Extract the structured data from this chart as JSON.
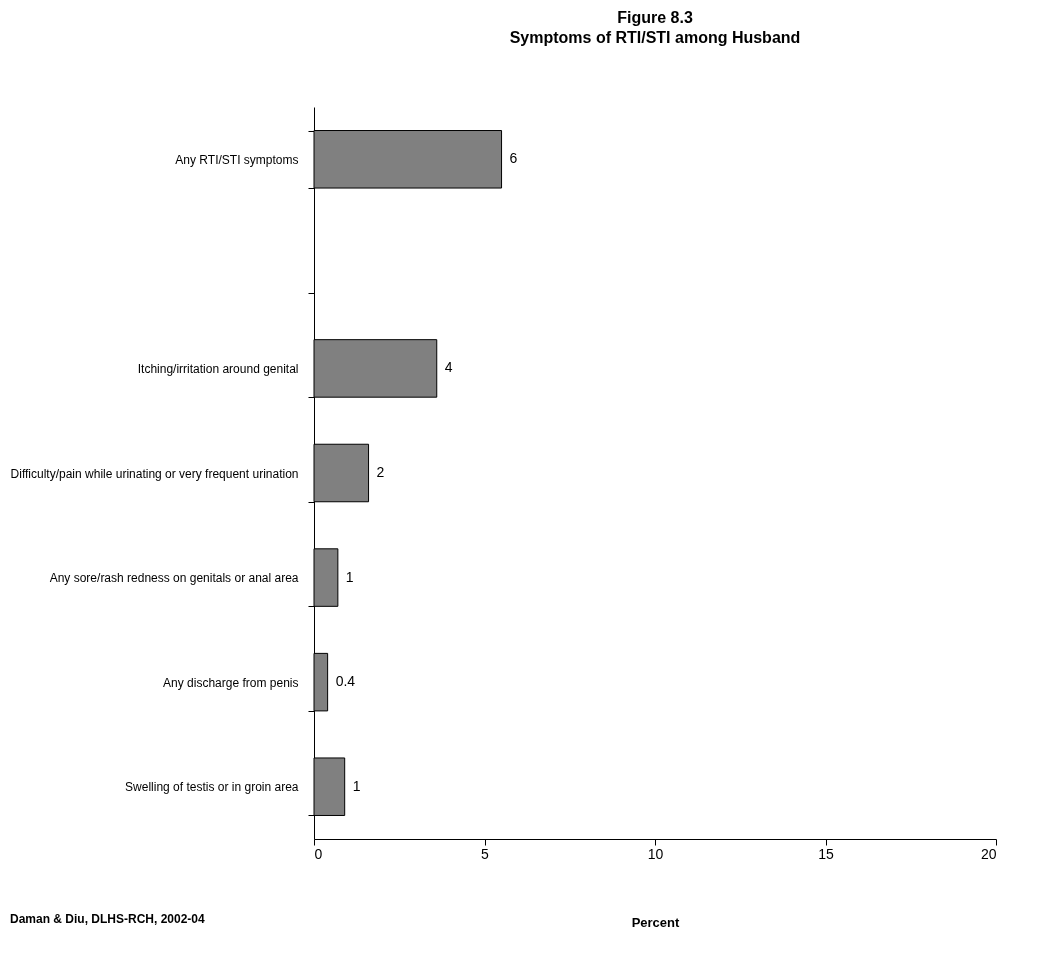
{
  "chart_data": {
    "type": "bar",
    "orientation": "horizontal",
    "title": "Figure 8.3",
    "subtitle": "Symptoms of RTI/STI among Husband",
    "xlabel": "Percent",
    "categories": [
      "Any RTI/STI symptoms",
      null,
      "Itching/irritation around genital",
      "Difficulty/pain while urinating or very frequent urination",
      "Any sore/rash redness on genitals or anal area",
      "Any discharge from penis",
      "Swelling of testis or in groin area"
    ],
    "values": [
      5.5,
      null,
      3.6,
      1.6,
      0.7,
      0.4,
      0.9
    ],
    "value_labels": [
      "6",
      null,
      "4",
      "2",
      "1",
      "0.4",
      "1"
    ],
    "color": "#808080",
    "xlim": [
      0,
      20
    ],
    "xticks": [
      0,
      5,
      10,
      15,
      20
    ],
    "grid": false,
    "annotations": [
      "Daman & Diu, DLHS-RCH, 2002-04"
    ]
  }
}
